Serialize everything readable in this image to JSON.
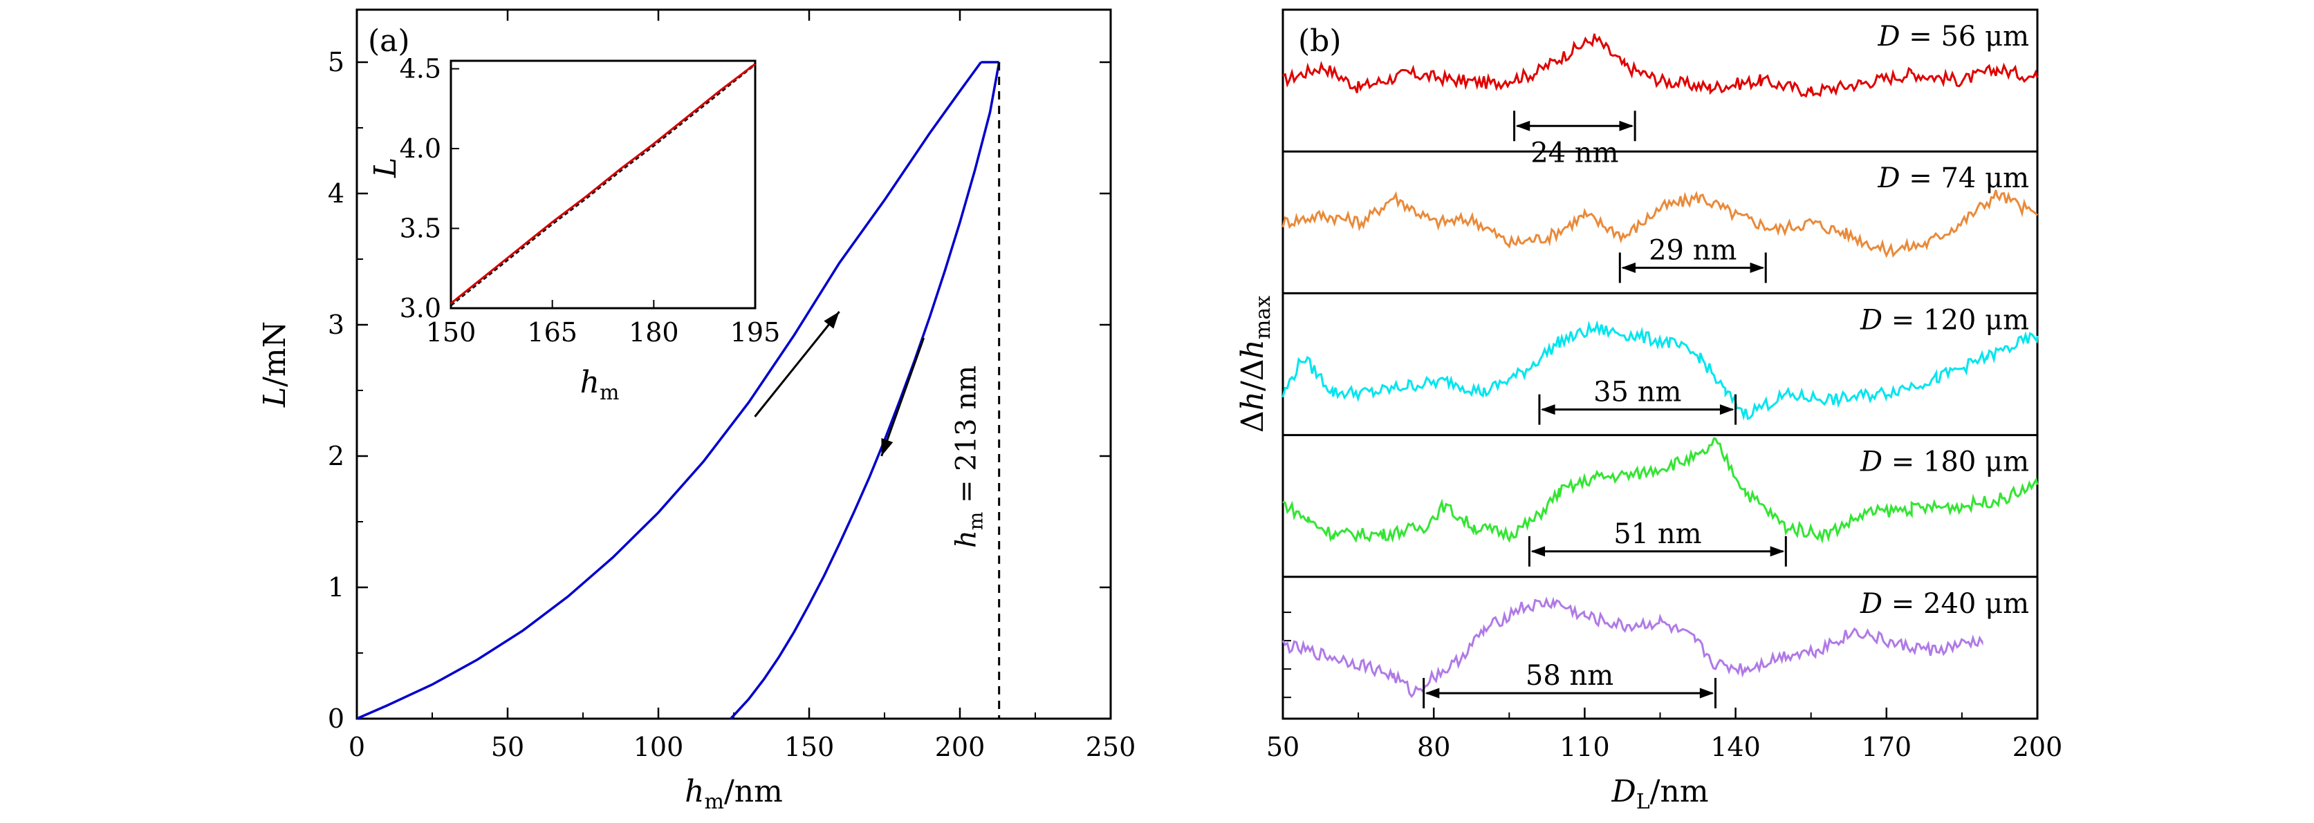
{
  "chart_data": [
    {
      "type": "line",
      "panel_label": "(a)",
      "xlabel": "h_m/nm",
      "ylabel": "L/mN",
      "xlim": [
        0,
        250
      ],
      "ylim": [
        0,
        5.4
      ],
      "xticks": [
        0,
        50,
        100,
        150,
        200,
        250
      ],
      "yticks": [
        0,
        1,
        2,
        3,
        4,
        5
      ],
      "series": [
        {
          "role": "loading",
          "color": "#0000cc",
          "x": [
            0,
            10,
            25,
            40,
            55,
            70,
            85,
            100,
            115,
            130,
            145,
            160,
            175,
            190,
            200,
            207
          ],
          "y": [
            0,
            0.1,
            0.26,
            0.45,
            0.67,
            0.93,
            1.23,
            1.57,
            1.96,
            2.41,
            2.92,
            3.47,
            3.95,
            4.46,
            4.78,
            5.0
          ]
        },
        {
          "role": "hold",
          "color": "#0000cc",
          "x": [
            207,
            213
          ],
          "y": [
            5.0,
            5.0
          ]
        },
        {
          "role": "unloading",
          "color": "#0000cc",
          "x": [
            124,
            126,
            130,
            135,
            140,
            145,
            150,
            155,
            160,
            165,
            170,
            175,
            180,
            185,
            190,
            195,
            200,
            205,
            210,
            213
          ],
          "y": [
            0,
            0.05,
            0.15,
            0.3,
            0.47,
            0.66,
            0.87,
            1.09,
            1.33,
            1.58,
            1.84,
            2.12,
            2.42,
            2.73,
            3.06,
            3.41,
            3.78,
            4.18,
            4.62,
            5.0
          ]
        }
      ],
      "annotations": {
        "hm_text": "h_m = 213 nm",
        "hm_value": 213,
        "arrow_up": {
          "from": [
            132,
            2.3
          ],
          "to": [
            160,
            3.1
          ]
        },
        "arrow_down": {
          "from": [
            188,
            2.9
          ],
          "to": [
            174,
            2.0
          ]
        }
      },
      "inset": {
        "xlabel": "h_m",
        "ylabel": "L",
        "xlim": [
          150,
          195
        ],
        "ylim": [
          3.0,
          4.55
        ],
        "xticks": [
          150,
          165,
          180,
          195
        ],
        "yticks": [
          3.0,
          3.5,
          4.0,
          4.5
        ],
        "ytick_labels": [
          "3.0",
          "3.5",
          "4.0",
          "4.5"
        ],
        "series": [
          {
            "role": "data",
            "color": "#111111",
            "x": [
              150,
              155,
              160,
              165,
              170,
              175,
              180,
              185,
              190,
              195
            ],
            "y": [
              3.02,
              3.19,
              3.36,
              3.53,
              3.69,
              3.86,
              4.02,
              4.19,
              4.36,
              4.53
            ]
          },
          {
            "role": "fit",
            "color": "#d40000",
            "x": [
              150,
              155,
              160,
              165,
              170,
              175,
              180,
              185,
              190,
              195
            ],
            "y": [
              3.03,
              3.2,
              3.37,
              3.54,
              3.7,
              3.87,
              4.03,
              4.2,
              4.37,
              4.53
            ]
          }
        ]
      }
    },
    {
      "type": "line",
      "panel_label": "(b)",
      "xlabel": "D_L/nm",
      "ylabel": "Δh/Δh_max",
      "xlim": [
        50,
        200
      ],
      "xticks": [
        50,
        80,
        110,
        140,
        170,
        200
      ],
      "series": [
        {
          "name": "D = 56 μm",
          "color": "#e00000",
          "span_label": "24 nm",
          "span": [
            96,
            120
          ],
          "x_end": 200,
          "x": [
            50,
            58,
            65,
            75,
            85,
            92,
            100,
            107,
            112,
            118,
            125,
            135,
            145,
            155,
            165,
            175,
            185,
            192,
            200
          ],
          "y": [
            0.5,
            0.6,
            0.45,
            0.55,
            0.5,
            0.48,
            0.55,
            0.7,
            0.8,
            0.6,
            0.5,
            0.45,
            0.5,
            0.42,
            0.48,
            0.55,
            0.5,
            0.58,
            0.52
          ]
        },
        {
          "name": "D = 74 μm",
          "color": "#e98a3a",
          "span_label": "29 nm",
          "span": [
            117,
            146
          ],
          "x_end": 200,
          "x": [
            50,
            58,
            66,
            72,
            80,
            88,
            95,
            103,
            110,
            118,
            125,
            133,
            140,
            148,
            155,
            162,
            170,
            178,
            185,
            192,
            200
          ],
          "y": [
            0.5,
            0.55,
            0.5,
            0.68,
            0.5,
            0.52,
            0.35,
            0.4,
            0.55,
            0.4,
            0.6,
            0.68,
            0.55,
            0.45,
            0.5,
            0.42,
            0.3,
            0.35,
            0.5,
            0.7,
            0.55
          ]
        },
        {
          "name": "D = 120 μm",
          "color": "#00e5ee",
          "span_label": "35 nm",
          "span": [
            101,
            140
          ],
          "x_end": 200,
          "x": [
            50,
            54,
            60,
            68,
            75,
            83,
            90,
            98,
            105,
            112,
            120,
            127,
            133,
            138,
            142,
            150,
            160,
            170,
            180,
            190,
            200
          ],
          "y": [
            0.28,
            0.55,
            0.3,
            0.3,
            0.35,
            0.38,
            0.3,
            0.45,
            0.66,
            0.75,
            0.7,
            0.65,
            0.55,
            0.3,
            0.15,
            0.28,
            0.25,
            0.3,
            0.4,
            0.55,
            0.7
          ]
        },
        {
          "name": "D = 180 μm",
          "color": "#33e533",
          "span_label": "51 nm",
          "span": [
            99,
            150
          ],
          "x_end": 200,
          "x": [
            50,
            55,
            60,
            70,
            78,
            82,
            88,
            95,
            100,
            105,
            112,
            120,
            128,
            133,
            136,
            142,
            150,
            158,
            166,
            175,
            185,
            193,
            200
          ],
          "y": [
            0.52,
            0.4,
            0.3,
            0.3,
            0.35,
            0.5,
            0.35,
            0.3,
            0.4,
            0.6,
            0.7,
            0.72,
            0.8,
            0.85,
            0.95,
            0.6,
            0.35,
            0.3,
            0.45,
            0.48,
            0.5,
            0.55,
            0.65
          ]
        },
        {
          "name": "D = 240 μm",
          "color": "#b07ae6",
          "span_label": "58 nm",
          "span": [
            78,
            136
          ],
          "x_end": 189,
          "x": [
            50,
            58,
            66,
            72,
            76,
            80,
            84,
            90,
            97,
            104,
            110,
            118,
            125,
            132,
            136,
            142,
            150,
            156,
            164,
            172,
            180,
            189
          ],
          "y": [
            0.52,
            0.45,
            0.38,
            0.3,
            0.18,
            0.3,
            0.38,
            0.62,
            0.78,
            0.82,
            0.72,
            0.65,
            0.68,
            0.55,
            0.38,
            0.35,
            0.45,
            0.48,
            0.62,
            0.52,
            0.48,
            0.55
          ]
        }
      ]
    }
  ]
}
